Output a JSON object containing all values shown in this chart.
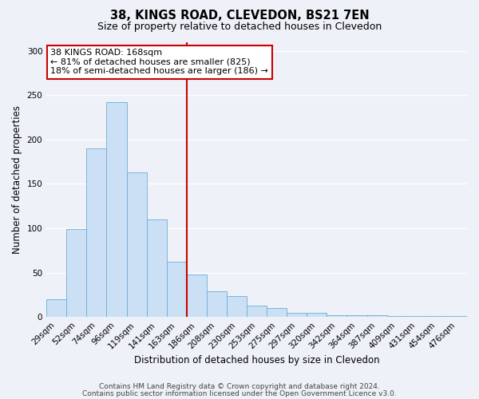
{
  "title": "38, KINGS ROAD, CLEVEDON, BS21 7EN",
  "subtitle": "Size of property relative to detached houses in Clevedon",
  "xlabel": "Distribution of detached houses by size in Clevedon",
  "ylabel": "Number of detached properties",
  "categories": [
    "29sqm",
    "52sqm",
    "74sqm",
    "96sqm",
    "119sqm",
    "141sqm",
    "163sqm",
    "186sqm",
    "208sqm",
    "230sqm",
    "253sqm",
    "275sqm",
    "297sqm",
    "320sqm",
    "342sqm",
    "364sqm",
    "387sqm",
    "409sqm",
    "431sqm",
    "454sqm",
    "476sqm"
  ],
  "values": [
    20,
    99,
    190,
    242,
    163,
    110,
    62,
    48,
    29,
    24,
    13,
    10,
    5,
    5,
    2,
    2,
    2,
    1,
    1,
    1,
    1
  ],
  "bar_color": "#cce0f5",
  "bar_edge_color": "#6aaed6",
  "vline_x_index": 6.5,
  "vline_color": "#cc0000",
  "annotation_line1": "38 KINGS ROAD: 168sqm",
  "annotation_line2": "← 81% of detached houses are smaller (825)",
  "annotation_line3": "18% of semi-detached houses are larger (186) →",
  "annotation_box_facecolor": "#ffffff",
  "annotation_box_edgecolor": "#cc0000",
  "ylim": [
    0,
    310
  ],
  "yticks": [
    0,
    50,
    100,
    150,
    200,
    250,
    300
  ],
  "footer_line1": "Contains HM Land Registry data © Crown copyright and database right 2024.",
  "footer_line2": "Contains public sector information licensed under the Open Government Licence v3.0.",
  "bg_color": "#eef2f8",
  "plot_bg_color": "#eef2f8",
  "grid_color": "#ffffff",
  "title_fontsize": 10.5,
  "subtitle_fontsize": 9,
  "axis_label_fontsize": 8.5,
  "tick_fontsize": 7.5,
  "annotation_fontsize": 8,
  "footer_fontsize": 6.5
}
